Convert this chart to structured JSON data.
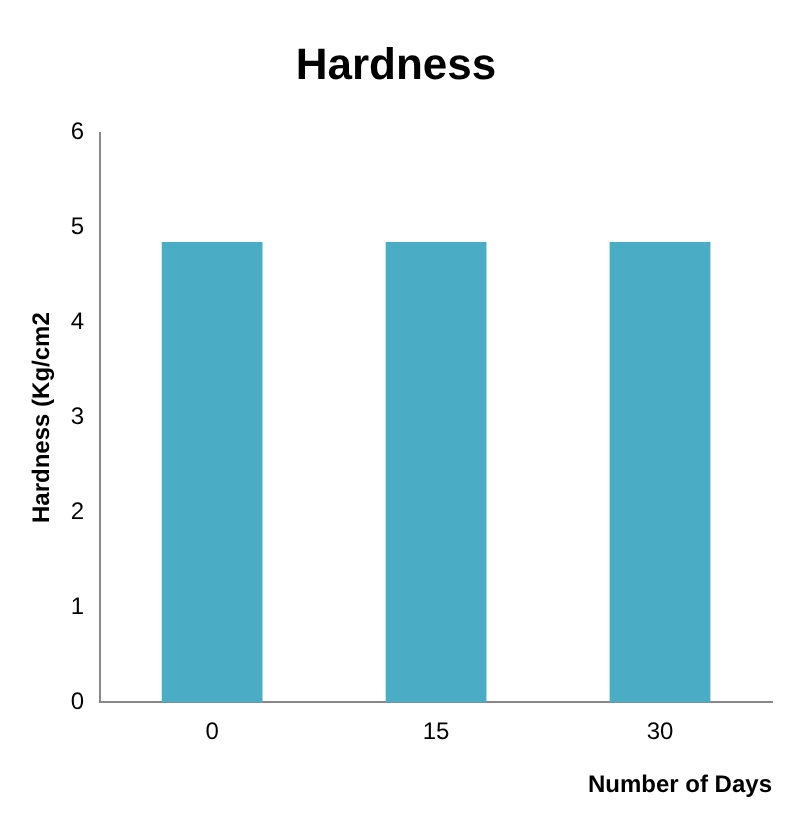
{
  "chart_data": {
    "type": "bar",
    "title": "Hardness",
    "xlabel": "Number of Days",
    "ylabel": "Hardness (Kg/cm2",
    "categories": [
      "0",
      "15",
      "30"
    ],
    "values": [
      4.85,
      4.85,
      4.85
    ],
    "color": "#4bacc6",
    "ylim": [
      0,
      6
    ],
    "yticks": [
      0,
      1,
      2,
      3,
      4,
      5,
      6
    ],
    "grid": false,
    "legend": false
  }
}
